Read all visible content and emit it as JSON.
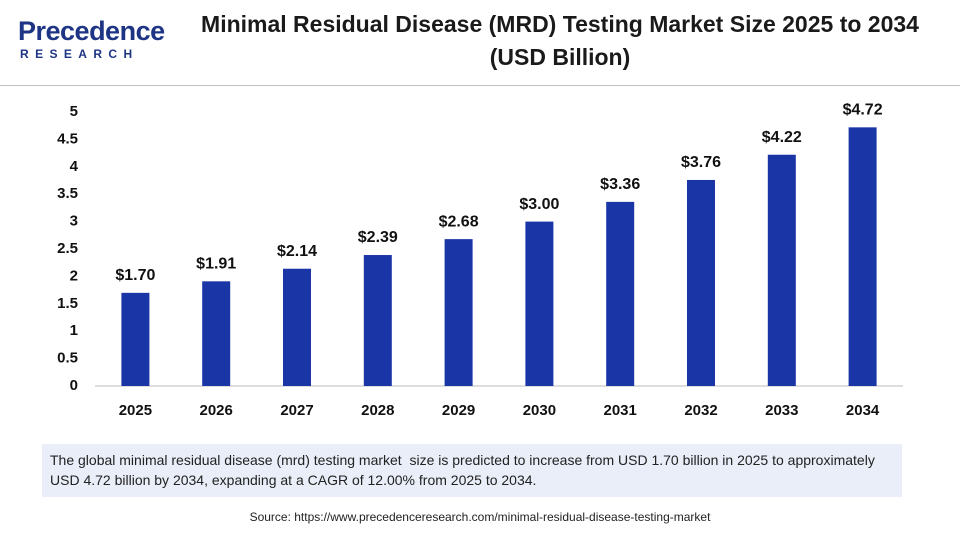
{
  "logo": {
    "name": "Precedence",
    "tagline": "RESEARCH"
  },
  "chart_data": {
    "type": "bar",
    "title": "Minimal Residual Disease (MRD) Testing Market Size 2025 to 2034 (USD Billion)",
    "categories": [
      "2025",
      "2026",
      "2027",
      "2028",
      "2029",
      "2030",
      "2031",
      "2032",
      "2033",
      "2034"
    ],
    "values": [
      1.7,
      1.91,
      2.14,
      2.39,
      2.68,
      3.0,
      3.36,
      3.76,
      4.22,
      4.72
    ],
    "value_labels": [
      "$1.70",
      "$1.91",
      "$2.14",
      "$2.39",
      "$2.68",
      "$3.00",
      "$3.36",
      "$3.76",
      "$4.22",
      "$4.72"
    ],
    "color": "#1a35a6",
    "ylim": [
      0,
      5
    ],
    "yticks": [
      0,
      0.5,
      1,
      1.5,
      2,
      2.5,
      3,
      3.5,
      4,
      4.5,
      5
    ],
    "grid": false
  },
  "description": "The global minimal residual disease (mrd) testing market  size is predicted to increase from USD 1.70 billion in 2025 to approximately USD 4.72 billion by 2034, expanding at a CAGR of 12.00% from 2025 to 2034.",
  "source": "Source: https://www.precedenceresearch.com/minimal-residual-disease-testing-market"
}
